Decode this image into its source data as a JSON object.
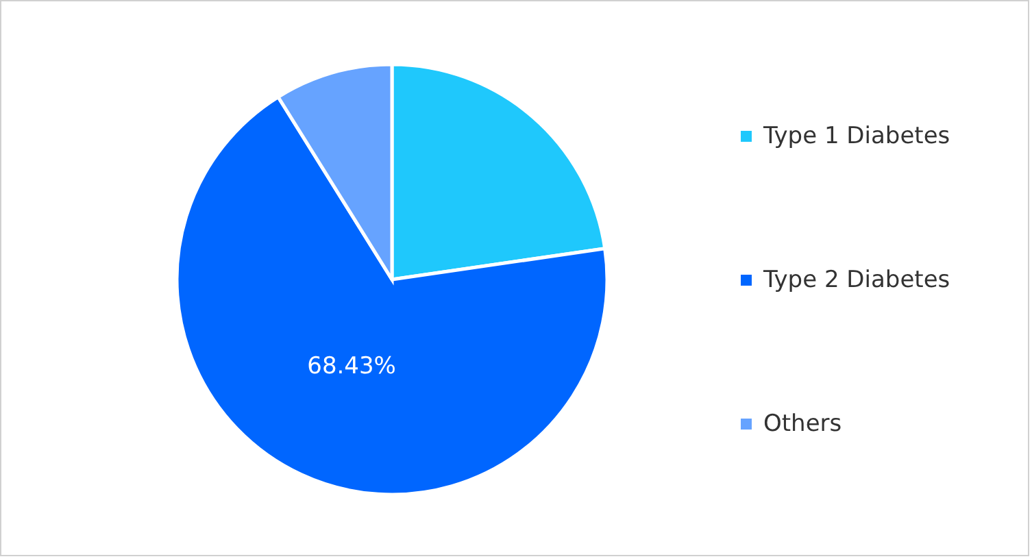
{
  "chart_data": {
    "type": "pie",
    "categories": [
      "Type 1 Diabetes",
      "Type 2 Diabetes",
      "Others"
    ],
    "values": [
      22.7,
      68.43,
      8.87
    ],
    "colors": [
      "#1fc8fc",
      "#0066ff",
      "#66a3ff"
    ],
    "value_labels": [
      null,
      "68.43%",
      null
    ],
    "legend": "right"
  }
}
